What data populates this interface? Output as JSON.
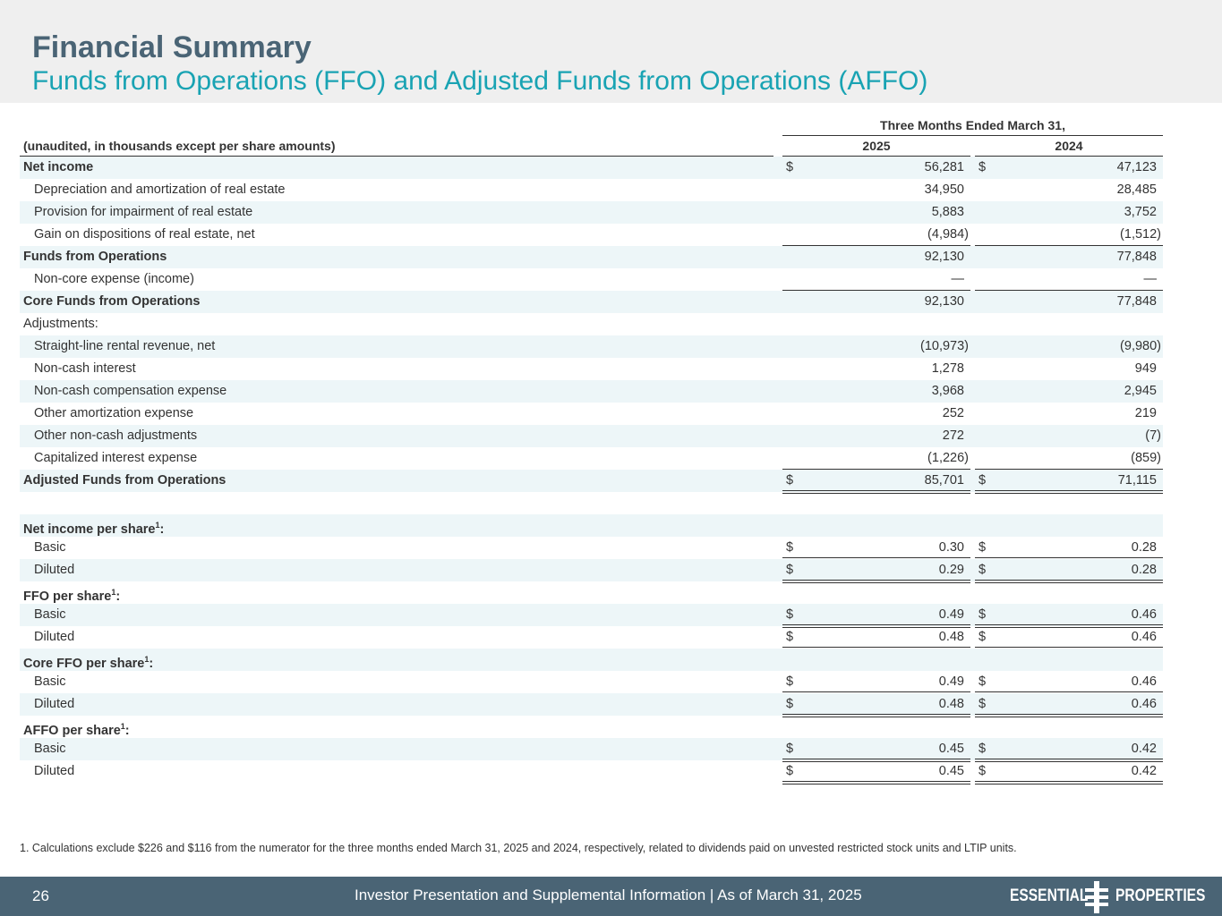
{
  "header": {
    "title": "Financial Summary",
    "subtitle": "Funds from Operations (FFO) and Adjusted Funds from Operations (AFFO)"
  },
  "table": {
    "period_header": "Three Months Ended March 31,",
    "label_header": "(unaudited, in thousands except per share amounts)",
    "columns": [
      "2025",
      "2024"
    ],
    "rows": [
      {
        "label": "Net income",
        "currency": "$",
        "values": [
          "56,281",
          "47,123"
        ]
      },
      {
        "label": "Depreciation and amortization of real estate",
        "values": [
          "34,950",
          "28,485"
        ]
      },
      {
        "label": "Provision for impairment of real estate",
        "values": [
          "5,883",
          "3,752"
        ]
      },
      {
        "label": "Gain on dispositions of real estate, net",
        "values": [
          "(4,984)",
          "(1,512)"
        ]
      },
      {
        "label": "Funds from Operations",
        "values": [
          "92,130",
          "77,848"
        ]
      },
      {
        "label": "Non-core expense (income)",
        "values": [
          "—",
          "—"
        ]
      },
      {
        "label": "Core Funds from Operations",
        "values": [
          "92,130",
          "77,848"
        ]
      },
      {
        "label": "Adjustments:"
      },
      {
        "label": "Straight-line rental revenue, net",
        "values": [
          "(10,973)",
          "(9,980)"
        ]
      },
      {
        "label": "Non-cash interest",
        "values": [
          "1,278",
          "949"
        ]
      },
      {
        "label": "Non-cash compensation expense",
        "values": [
          "3,968",
          "2,945"
        ]
      },
      {
        "label": "Other amortization expense",
        "values": [
          "252",
          "219"
        ]
      },
      {
        "label": "Other non-cash adjustments",
        "values": [
          "272",
          "(7)"
        ]
      },
      {
        "label": "Capitalized interest expense",
        "values": [
          "(1,226)",
          "(859)"
        ]
      },
      {
        "label": "Adjusted Funds from Operations",
        "currency": "$",
        "values": [
          "85,701",
          "71,115"
        ]
      },
      {
        "label": "Net income per share",
        "sup": "1",
        "label_end": ":"
      },
      {
        "label": "Basic",
        "currency": "$",
        "values": [
          "0.30",
          "0.28"
        ]
      },
      {
        "label": "Diluted",
        "currency": "$",
        "values": [
          "0.29",
          "0.28"
        ]
      },
      {
        "label": "FFO per share",
        "sup": "1",
        "label_end": ":"
      },
      {
        "label": "Basic",
        "currency": "$",
        "values": [
          "0.49",
          "0.46"
        ]
      },
      {
        "label": "Diluted",
        "currency": "$",
        "values": [
          "0.48",
          "0.46"
        ]
      },
      {
        "label": "Core FFO per share",
        "sup": "1",
        "label_end": ":"
      },
      {
        "label": "Basic",
        "currency": "$",
        "values": [
          "0.49",
          "0.46"
        ]
      },
      {
        "label": "Diluted",
        "currency": "$",
        "values": [
          "0.48",
          "0.46"
        ]
      },
      {
        "label": "AFFO per share",
        "sup": "1",
        "label_end": ":"
      },
      {
        "label": "Basic",
        "currency": "$",
        "values": [
          "0.45",
          "0.42"
        ]
      },
      {
        "label": "Diluted",
        "currency": "$",
        "values": [
          "0.45",
          "0.42"
        ]
      }
    ]
  },
  "footnote": "1. Calculations exclude $226 and $116 from the numerator for the three months ended March 31, 2025 and 2024, respectively, related to dividends paid on unvested restricted stock units and LTIP units.",
  "footer": {
    "page_number": "26",
    "text": "Investor Presentation and Supplemental Information |  As of March 31, 2025",
    "logo_left": "ESSENTIAL",
    "logo_right": "PROPERTIES"
  }
}
